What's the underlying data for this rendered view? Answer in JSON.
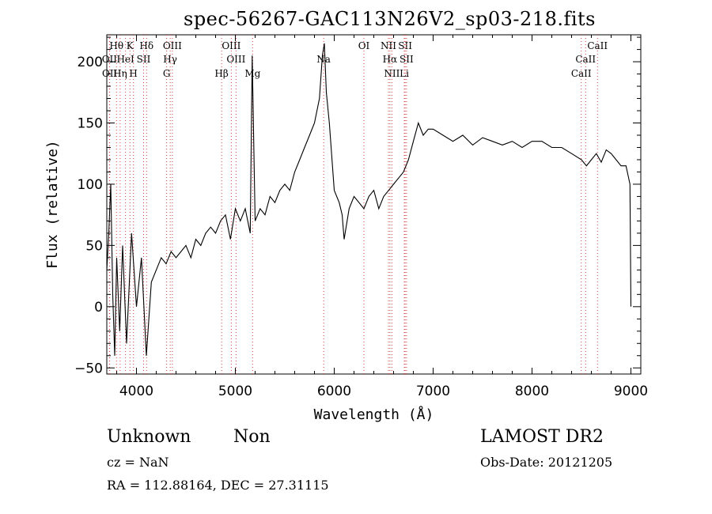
{
  "chart_data": {
    "type": "line",
    "title": "spec-56267-GAC113N26V2_sp03-218.fits",
    "xlabel": "Wavelength (Å)",
    "ylabel": "Flux (relative)",
    "xlim": [
      3700,
      9100
    ],
    "ylim": [
      -55,
      222
    ],
    "xticks": [
      4000,
      5000,
      6000,
      7000,
      8000,
      9000
    ],
    "yticks": [
      -50,
      0,
      50,
      100,
      150,
      200
    ],
    "grid": false,
    "legend": "none",
    "line_color": "#000000",
    "series": [
      {
        "x": [
          3700,
          3720,
          3740,
          3760,
          3780,
          3800,
          3830,
          3860,
          3900,
          3950,
          4000,
          4050,
          4100,
          4150,
          4200,
          4250,
          4300,
          4350,
          4400,
          4450,
          4500,
          4550,
          4600,
          4650,
          4700,
          4750,
          4800,
          4850,
          4900,
          4950,
          5000,
          5050,
          5100,
          5150,
          5170,
          5200,
          5250,
          5300,
          5350,
          5400,
          5450,
          5500,
          5550,
          5600,
          5650,
          5700,
          5750,
          5800,
          5850,
          5880,
          5900,
          5920,
          5950,
          6000,
          6050,
          6080,
          6100,
          6150,
          6200,
          6250,
          6300,
          6350,
          6400,
          6450,
          6500,
          6550,
          6600,
          6650,
          6700,
          6750,
          6800,
          6850,
          6900,
          6950,
          7000,
          7100,
          7200,
          7300,
          7400,
          7500,
          7600,
          7700,
          7800,
          7900,
          8000,
          8100,
          8200,
          8300,
          8400,
          8500,
          8550,
          8600,
          8650,
          8700,
          8750,
          8800,
          8850,
          8900,
          8950,
          8990,
          9000
        ],
        "y": [
          30,
          60,
          100,
          10,
          -40,
          40,
          -20,
          50,
          -30,
          60,
          0,
          40,
          -40,
          20,
          30,
          40,
          35,
          45,
          40,
          45,
          50,
          40,
          55,
          50,
          60,
          65,
          60,
          70,
          75,
          55,
          80,
          70,
          80,
          60,
          205,
          70,
          80,
          75,
          90,
          85,
          95,
          100,
          95,
          110,
          120,
          130,
          140,
          150,
          170,
          205,
          215,
          175,
          150,
          95,
          85,
          75,
          55,
          80,
          90,
          85,
          80,
          90,
          95,
          80,
          90,
          95,
          100,
          105,
          110,
          120,
          135,
          150,
          140,
          145,
          145,
          140,
          135,
          140,
          132,
          138,
          135,
          132,
          135,
          130,
          135,
          135,
          130,
          130,
          125,
          120,
          115,
          120,
          125,
          118,
          128,
          125,
          120,
          115,
          115,
          100,
          0
        ]
      }
    ],
    "line_labels": [
      {
        "name": "Hθ",
        "x": 3798,
        "row": 0
      },
      {
        "name": "K",
        "x": 3934,
        "row": 0
      },
      {
        "name": "Hδ",
        "x": 4102,
        "row": 0
      },
      {
        "name": "OIII",
        "x": 4363,
        "row": 0
      },
      {
        "name": "OIII",
        "x": 4959,
        "row": 0
      },
      {
        "name": "OI",
        "x": 6300,
        "row": 0
      },
      {
        "name": "NII",
        "x": 6548,
        "row": 0
      },
      {
        "name": "SII",
        "x": 6717,
        "row": 0
      },
      {
        "name": "CaII",
        "x": 8662,
        "row": 0
      },
      {
        "name": "OII",
        "x": 3727,
        "row": 1
      },
      {
        "name": "HeI",
        "x": 3889,
        "row": 1
      },
      {
        "name": "SII",
        "x": 4072,
        "row": 1
      },
      {
        "name": "Hγ",
        "x": 4341,
        "row": 1
      },
      {
        "name": "OIII",
        "x": 5007,
        "row": 1
      },
      {
        "name": "Na",
        "x": 5893,
        "row": 1
      },
      {
        "name": "Hα",
        "x": 6563,
        "row": 1
      },
      {
        "name": "SII",
        "x": 6731,
        "row": 1
      },
      {
        "name": "CaII",
        "x": 8542,
        "row": 1
      },
      {
        "name": "OII",
        "x": 3729,
        "row": 2
      },
      {
        "name": "Hη",
        "x": 3835,
        "row": 2
      },
      {
        "name": "H",
        "x": 3969,
        "row": 2
      },
      {
        "name": "G",
        "x": 4305,
        "row": 2
      },
      {
        "name": "Hβ",
        "x": 4861,
        "row": 2
      },
      {
        "name": "Mg",
        "x": 5175,
        "row": 2
      },
      {
        "name": "NII",
        "x": 6583,
        "row": 2
      },
      {
        "name": "Li",
        "x": 6708,
        "row": 2
      },
      {
        "name": "CaII",
        "x": 8498,
        "row": 2
      }
    ]
  },
  "info": {
    "class": "Unknown",
    "subclass": "Non",
    "survey": "LAMOST DR2",
    "cz": "cz = NaN",
    "obs_date": "Obs-Date: 20121205",
    "radec": "RA = 112.88164, DEC =  27.31115"
  }
}
